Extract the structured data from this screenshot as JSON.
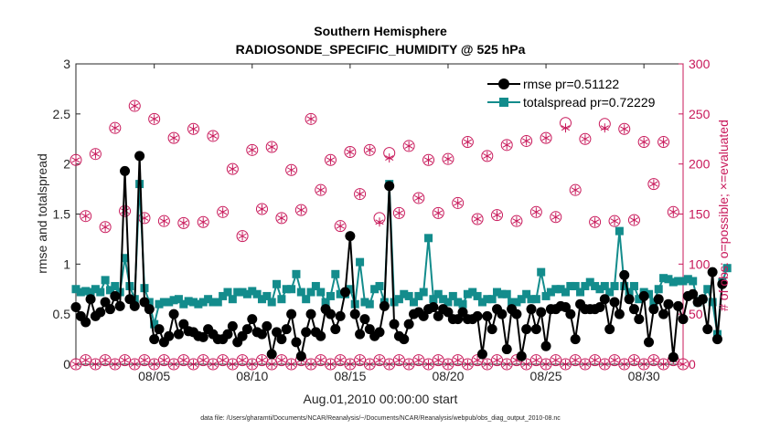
{
  "chart_data": {
    "type": "line",
    "title": "Southern Hemisphere",
    "subtitle": "RADIOSONDE_SPECIFIC_HUMIDITY @ 525 hPa",
    "xlabel": "Aug.01,2010 00:00:00 start",
    "ylabel": "rmse and totalspread",
    "y2label": "# of obs: o=possible; ×=evaluated",
    "xticks": [
      "08/05",
      "08/10",
      "08/15",
      "08/20",
      "08/25",
      "08/30"
    ],
    "xtick_days": [
      5,
      10,
      15,
      20,
      25,
      30
    ],
    "xlim": [
      1,
      32
    ],
    "ylim": [
      0,
      3
    ],
    "y2lim": [
      0,
      300
    ],
    "yticks": [
      "0",
      "0.5",
      "1",
      "1.5",
      "2",
      "2.5",
      "3"
    ],
    "y2ticks": [
      "0",
      "50",
      "100",
      "150",
      "200",
      "250",
      "300"
    ],
    "grid": false,
    "legend_position": "top-right",
    "footnote": "data file: /Users/gharamti/Documents/NCAR/Reanalysis/~/Documents/NCAR/Reanalysis/webpub/obs_diag_output_2010-08.nc",
    "colors": {
      "rmse": "#000000",
      "totalspread": "#138c8c",
      "obs": "#c8185a"
    },
    "time_start": 1,
    "time_step": 0.25,
    "series": [
      {
        "name": "rmse pr=0.51122",
        "values": [
          0.57,
          0.48,
          0.42,
          0.65,
          0.48,
          0.52,
          0.62,
          0.55,
          0.68,
          0.58,
          1.93,
          0.65,
          0.58,
          2.08,
          0.62,
          0.55,
          0.25,
          0.35,
          0.22,
          0.28,
          0.5,
          0.3,
          0.4,
          0.33,
          0.32,
          0.28,
          0.27,
          0.35,
          0.3,
          0.25,
          0.25,
          0.3,
          0.38,
          0.22,
          0.28,
          0.35,
          0.45,
          0.32,
          0.3,
          0.38,
          0.1,
          0.32,
          0.25,
          0.35,
          0.5,
          0.22,
          0.08,
          0.32,
          0.5,
          0.32,
          0.28,
          0.55,
          0.5,
          0.35,
          0.48,
          0.72,
          1.28,
          0.5,
          0.3,
          0.45,
          0.35,
          0.28,
          0.32,
          0.58,
          1.78,
          0.4,
          0.28,
          0.25,
          0.4,
          0.5,
          0.52,
          0.48,
          0.55,
          0.57,
          0.48,
          0.55,
          0.52,
          0.45,
          0.45,
          0.52,
          0.45,
          0.45,
          0.48,
          0.1,
          0.48,
          0.35,
          0.55,
          0.5,
          0.15,
          0.55,
          0.5,
          0.08,
          0.35,
          0.55,
          0.35,
          0.52,
          0.18,
          0.55,
          0.55,
          0.58,
          0.57,
          0.5,
          0.25,
          0.6,
          0.55,
          0.55,
          0.55,
          0.57,
          0.65,
          0.35,
          0.62,
          0.5,
          0.89,
          0.65,
          0.55,
          0.45,
          0.68,
          0.22,
          0.55,
          0.65,
          0.5,
          0.6,
          0.07,
          0.58,
          0.45,
          0.68,
          0.7,
          0.62,
          0.65,
          0.35,
          0.92,
          0.25,
          0.8
        ]
      },
      {
        "name": "totalspread pr=0.72229",
        "values": [
          0.75,
          0.72,
          0.73,
          0.72,
          0.75,
          0.72,
          0.84,
          0.74,
          0.78,
          0.72,
          1.06,
          0.78,
          0.65,
          1.8,
          0.76,
          0.62,
          0.4,
          0.6,
          0.62,
          0.62,
          0.64,
          0.65,
          0.6,
          0.63,
          0.62,
          0.6,
          0.62,
          0.65,
          0.62,
          0.62,
          0.68,
          0.72,
          0.65,
          0.72,
          0.72,
          0.7,
          0.73,
          0.7,
          0.65,
          0.68,
          0.62,
          0.8,
          0.65,
          0.75,
          0.75,
          0.9,
          0.72,
          0.65,
          0.72,
          0.78,
          0.72,
          0.62,
          0.68,
          0.9,
          0.7,
          0.7,
          0.75,
          0.6,
          1.02,
          0.62,
          0.6,
          0.75,
          0.78,
          0.62,
          1.8,
          0.62,
          0.65,
          0.7,
          0.68,
          0.62,
          0.68,
          0.72,
          1.26,
          0.65,
          0.7,
          0.65,
          0.62,
          0.68,
          0.62,
          0.6,
          0.7,
          0.72,
          0.68,
          0.62,
          0.65,
          0.65,
          0.72,
          0.7,
          0.7,
          0.62,
          0.62,
          0.65,
          0.7,
          0.65,
          0.65,
          0.92,
          0.68,
          0.72,
          0.75,
          0.75,
          0.72,
          0.78,
          0.78,
          0.72,
          0.78,
          0.82,
          0.78,
          0.75,
          0.78,
          0.72,
          0.78,
          1.33,
          0.78,
          0.72,
          0.78,
          0.65,
          0.72,
          0.7,
          0.62,
          0.75,
          0.86,
          0.85,
          0.82,
          0.83,
          0.83,
          0.85,
          0.83,
          0.62,
          0.65,
          0.75,
          0.62,
          0.3,
          0.82,
          0.96
        ]
      }
    ],
    "obs_high": {
      "name": "# of obs (00Z)",
      "x": [
        1.0,
        2.0,
        3.0,
        4.0,
        5.0,
        6.0,
        7.0,
        8.0,
        9.0,
        10.0,
        11.0,
        12.0,
        13.0,
        14.0,
        15.0,
        16.0,
        17.0,
        18.0,
        19.0,
        20.0,
        21.0,
        22.0,
        23.0,
        24.0,
        25.0,
        26.0,
        27.0,
        28.0,
        29.0,
        30.0,
        31.0
      ],
      "possible": [
        204,
        210,
        236,
        258,
        245,
        226,
        235,
        228,
        195,
        214,
        217,
        194,
        245,
        204,
        212,
        214,
        211,
        218,
        204,
        205,
        222,
        208,
        219,
        223,
        226,
        241,
        225,
        240,
        235,
        222,
        222
      ],
      "evaluated": [
        204,
        210,
        236,
        258,
        245,
        226,
        235,
        228,
        195,
        214,
        217,
        194,
        245,
        204,
        212,
        214,
        206,
        218,
        204,
        205,
        222,
        208,
        219,
        223,
        226,
        236,
        225,
        236,
        235,
        222,
        222
      ]
    },
    "obs_mid": {
      "name": "# of obs (12Z)",
      "x": [
        1.5,
        2.5,
        3.5,
        4.5,
        5.5,
        6.5,
        7.5,
        8.5,
        9.5,
        10.5,
        11.5,
        12.5,
        13.5,
        14.5,
        15.5,
        16.5,
        17.5,
        18.5,
        19.5,
        20.5,
        21.5,
        22.5,
        23.5,
        24.5,
        25.5,
        26.5,
        27.5,
        28.5,
        29.5,
        30.5,
        31.5
      ],
      "possible": [
        148,
        137,
        153,
        146,
        143,
        141,
        142,
        152,
        128,
        155,
        146,
        154,
        174,
        138,
        170,
        146,
        151,
        166,
        151,
        161,
        145,
        149,
        143,
        152,
        147,
        174,
        142,
        143,
        144,
        180,
        152
      ],
      "evaluated": [
        148,
        137,
        153,
        146,
        143,
        141,
        142,
        152,
        128,
        155,
        146,
        154,
        174,
        138,
        170,
        142,
        151,
        166,
        151,
        161,
        145,
        149,
        143,
        152,
        147,
        174,
        142,
        143,
        144,
        180,
        152
      ]
    },
    "obs_low": {
      "name": "# of obs (low)",
      "x": [
        1.0,
        1.5,
        2.0,
        2.5,
        3.0,
        3.5,
        4.0,
        4.5,
        5.0,
        5.5,
        6.0,
        6.5,
        7.0,
        7.5,
        8.0,
        8.5,
        9.0,
        9.5,
        10.0,
        10.5,
        11.0,
        11.5,
        12.0,
        12.5,
        13.0,
        13.5,
        14.0,
        14.5,
        15.0,
        15.5,
        16.0,
        16.5,
        17.0,
        17.5,
        18.0,
        18.5,
        19.0,
        19.5,
        20.0,
        20.5,
        21.0,
        21.5,
        22.0,
        22.5,
        23.0,
        23.5,
        24.0,
        24.5,
        25.0,
        25.5,
        26.0,
        26.5,
        27.0,
        27.5,
        28.0,
        28.5,
        29.0,
        29.5,
        30.0,
        30.5,
        31.0,
        31.5,
        32.0
      ],
      "values": [
        0,
        4,
        0,
        4,
        0,
        4,
        0,
        4,
        0,
        4,
        0,
        4,
        0,
        4,
        0,
        4,
        0,
        4,
        0,
        4,
        0,
        4,
        0,
        4,
        0,
        4,
        0,
        4,
        0,
        4,
        0,
        4,
        0,
        4,
        0,
        4,
        0,
        4,
        0,
        4,
        0,
        4,
        0,
        4,
        0,
        4,
        0,
        4,
        0,
        4,
        0,
        4,
        0,
        4,
        0,
        4,
        0,
        4,
        0,
        4,
        0,
        4,
        0
      ]
    }
  }
}
